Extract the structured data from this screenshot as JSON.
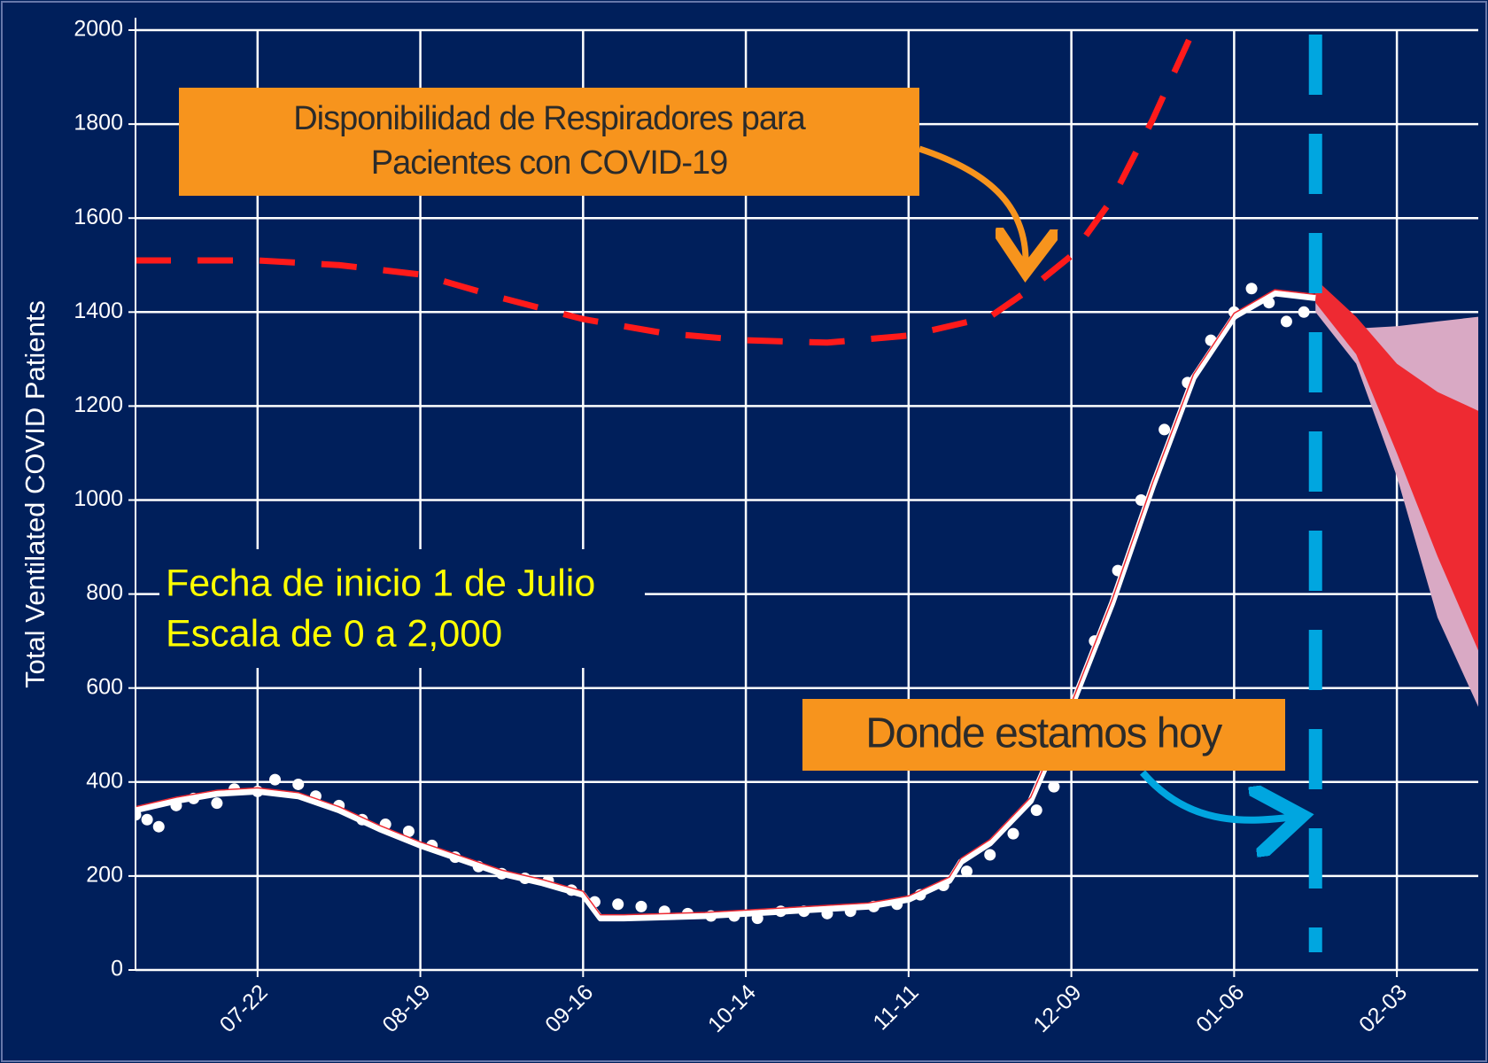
{
  "chart_data": {
    "type": "line",
    "y_label": "Total Ventilated COVID Patients",
    "xlim": [
      "07-01",
      "02-17"
    ],
    "xticks": [
      "07-22",
      "08-19",
      "09-16",
      "10-14",
      "11-11",
      "12-09",
      "01-06",
      "02-03"
    ],
    "ylim": [
      0,
      2000
    ],
    "yticks": [
      0,
      200,
      400,
      600,
      800,
      1000,
      1200,
      1400,
      1600,
      1800,
      2000
    ],
    "grid": true,
    "bands": [
      {
        "color": "#d9a9c4",
        "x": [
          "01-20",
          "01-27",
          "02-03",
          "02-10",
          "02-17"
        ],
        "lower": [
          1400,
          1290,
          1050,
          750,
          560
        ],
        "upper": [
          1470,
          1365,
          1370,
          1380,
          1390
        ]
      },
      {
        "color": "#ee2a32",
        "x": [
          "01-20",
          "01-27",
          "02-03",
          "02-10",
          "02-17"
        ],
        "lower": [
          1420,
          1310,
          1100,
          880,
          680
        ],
        "upper": [
          1470,
          1390,
          1290,
          1230,
          1190
        ]
      }
    ],
    "series": [
      {
        "style": "dashed",
        "color": "#ff1a1a",
        "x": [
          "07-01",
          "07-22",
          "08-05",
          "08-19",
          "09-02",
          "09-16",
          "09-30",
          "10-14",
          "10-28",
          "11-11",
          "11-25",
          "12-02",
          "12-09",
          "12-16",
          "12-23",
          "12-30"
        ],
        "values": [
          1510,
          1510,
          1500,
          1480,
          1430,
          1385,
          1355,
          1340,
          1335,
          1350,
          1390,
          1450,
          1520,
          1640,
          1810,
          2000
        ]
      },
      {
        "style": "dots",
        "color": "#ffffff",
        "x": [
          "07-01",
          "07-03",
          "07-05",
          "07-08",
          "07-11",
          "07-15",
          "07-18",
          "07-22",
          "07-25",
          "07-29",
          "08-01",
          "08-05",
          "08-09",
          "08-13",
          "08-17",
          "08-21",
          "08-25",
          "08-29",
          "09-02",
          "09-06",
          "09-10",
          "09-14",
          "09-18",
          "09-22",
          "09-26",
          "09-30",
          "10-04",
          "10-08",
          "10-12",
          "10-16",
          "10-20",
          "10-24",
          "10-28",
          "11-01",
          "11-05",
          "11-09",
          "11-13",
          "11-17",
          "11-21",
          "11-25",
          "11-29",
          "12-03",
          "12-06",
          "12-09",
          "12-13",
          "12-17",
          "12-21",
          "12-25",
          "12-29",
          "01-02",
          "01-06",
          "01-09",
          "01-12",
          "01-15",
          "01-18"
        ],
        "values": [
          330,
          320,
          305,
          350,
          365,
          355,
          385,
          380,
          405,
          395,
          370,
          350,
          320,
          310,
          295,
          265,
          240,
          220,
          205,
          195,
          190,
          170,
          145,
          140,
          135,
          125,
          120,
          115,
          115,
          110,
          125,
          125,
          120,
          125,
          135,
          140,
          160,
          180,
          210,
          245,
          290,
          340,
          390,
          560,
          700,
          850,
          1000,
          1150,
          1250,
          1340,
          1400,
          1450,
          1420,
          1380,
          1400
        ]
      },
      {
        "style": "line",
        "color": "#ffffff",
        "outline": "#ee2a32",
        "x": [
          "07-01",
          "07-08",
          "07-15",
          "07-22",
          "07-29",
          "08-05",
          "08-12",
          "08-19",
          "08-26",
          "09-02",
          "09-09",
          "09-16",
          "09-19",
          "09-23",
          "10-07",
          "10-14",
          "10-28",
          "11-04",
          "11-11",
          "11-18",
          "11-20",
          "11-25",
          "12-02",
          "12-09",
          "12-16",
          "12-23",
          "12-30",
          "01-06",
          "01-13",
          "01-20"
        ],
        "values": [
          340,
          360,
          375,
          380,
          370,
          340,
          300,
          265,
          235,
          205,
          185,
          160,
          110,
          110,
          115,
          120,
          130,
          135,
          150,
          190,
          230,
          270,
          360,
          560,
          780,
          1030,
          1260,
          1390,
          1440,
          1430
        ]
      }
    ],
    "today": {
      "x": "01-20",
      "color": "#00a6e0"
    },
    "annotations": [
      {
        "lines": [
          "Disponibilidad  de Respiradores para",
          "Pacientes con COVID-19"
        ]
      },
      {
        "lines": [
          "Fecha de inicio 1 de Julio",
          "Escala de 0 a 2,000"
        ]
      },
      {
        "lines": [
          "Donde estamos hoy"
        ]
      }
    ]
  }
}
